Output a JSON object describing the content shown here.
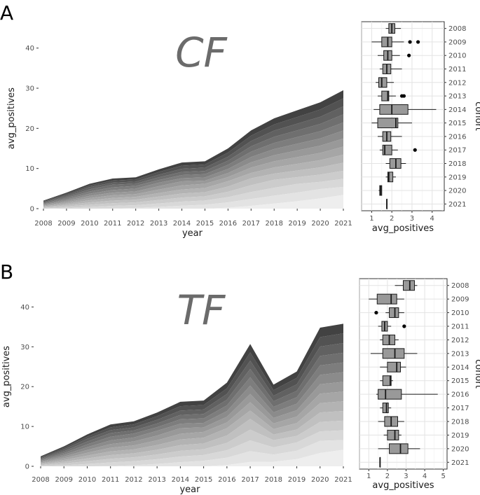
{
  "chart_data": [
    {
      "panel_label": "A",
      "watermark": "CF",
      "area": {
        "type": "area",
        "x": [
          "2008",
          "2009",
          "2010",
          "2011",
          "2012",
          "2013",
          "2014",
          "2015",
          "2016",
          "2017",
          "2018",
          "2019",
          "2020",
          "2021"
        ],
        "totals": [
          2,
          4,
          6.2,
          7.5,
          7.8,
          9.8,
          11.5,
          11.8,
          15,
          19.5,
          22.5,
          24.5,
          26.5,
          29.5
        ],
        "xlabel": "year",
        "ylabel": "avg_positives",
        "ylim": [
          0,
          45
        ],
        "yticks": [
          0,
          10,
          20,
          30,
          40
        ],
        "stack_colors": [
          "#424242",
          "#525252",
          "#616161",
          "#6f6f6f",
          "#7d7d7d",
          "#8b8b8b",
          "#999999",
          "#a6a6a6",
          "#b3b3b3",
          "#c0c0c0",
          "#cccccc",
          "#d8d8d8",
          "#e3e3e3",
          "#eeeeee"
        ]
      },
      "boxplot": {
        "type": "boxplot",
        "xlabel": "avg_positives",
        "ylabel": "cohort",
        "xlim": [
          0.5,
          4.6
        ],
        "xticks": [
          1,
          2,
          3,
          4
        ],
        "categories": [
          "2008",
          "2009",
          "2010",
          "2011",
          "2012",
          "2013",
          "2014",
          "2015",
          "2016",
          "2017",
          "2018",
          "2019",
          "2020",
          "2021"
        ],
        "boxes": [
          {
            "min": 1.7,
            "q1": 1.85,
            "median": 2.0,
            "q3": 2.15,
            "max": 2.45,
            "outliers": []
          },
          {
            "min": 1.0,
            "q1": 1.5,
            "median": 1.8,
            "q3": 2.0,
            "max": 2.6,
            "outliers": [
              2.9,
              3.3
            ]
          },
          {
            "min": 1.3,
            "q1": 1.6,
            "median": 1.8,
            "q3": 2.0,
            "max": 2.4,
            "outliers": [
              2.85
            ]
          },
          {
            "min": 1.4,
            "q1": 1.55,
            "median": 1.75,
            "q3": 1.95,
            "max": 2.5,
            "outliers": []
          },
          {
            "min": 1.2,
            "q1": 1.35,
            "median": 1.5,
            "q3": 1.75,
            "max": 2.1,
            "outliers": []
          },
          {
            "min": 1.3,
            "q1": 1.5,
            "median": 1.8,
            "q3": 1.85,
            "max": 2.2,
            "outliers": [
              2.5,
              2.6
            ]
          },
          {
            "min": 1.1,
            "q1": 1.4,
            "median": 2.0,
            "q3": 2.8,
            "max": 4.2,
            "outliers": []
          },
          {
            "min": 1.0,
            "q1": 1.3,
            "median": 2.2,
            "q3": 2.3,
            "max": 3.0,
            "outliers": []
          },
          {
            "min": 1.3,
            "q1": 1.55,
            "median": 1.75,
            "q3": 1.95,
            "max": 2.5,
            "outliers": []
          },
          {
            "min": 1.4,
            "q1": 1.55,
            "median": 1.65,
            "q3": 2.0,
            "max": 2.3,
            "outliers": [
              3.15
            ]
          },
          {
            "min": 1.7,
            "q1": 1.9,
            "median": 2.2,
            "q3": 2.45,
            "max": 2.7,
            "outliers": []
          },
          {
            "min": 1.7,
            "q1": 1.8,
            "median": 1.85,
            "q3": 2.05,
            "max": 2.2,
            "outliers": []
          },
          {
            "min": 1.35,
            "q1": 1.4,
            "median": 1.45,
            "q3": 1.5,
            "max": 1.5,
            "outliers": []
          },
          {
            "min": 1.75,
            "q1": 1.75,
            "median": 1.75,
            "q3": 1.75,
            "max": 1.75,
            "outliers": []
          }
        ]
      }
    },
    {
      "panel_label": "B",
      "watermark": "TF",
      "area": {
        "type": "area",
        "x": [
          "2008",
          "2009",
          "2010",
          "2011",
          "2012",
          "2013",
          "2014",
          "2015",
          "2016",
          "2017",
          "2018",
          "2019",
          "2020",
          "2021"
        ],
        "totals": [
          2.5,
          5,
          8,
          10.5,
          11.3,
          13.5,
          16.2,
          16.5,
          21,
          30.7,
          20.5,
          23.8,
          34.8,
          35.8
        ],
        "xlabel": "year",
        "ylabel": "avg_positives",
        "ylim": [
          0,
          45
        ],
        "yticks": [
          0,
          10,
          20,
          30,
          40
        ],
        "stack_colors": [
          "#424242",
          "#525252",
          "#616161",
          "#6f6f6f",
          "#7d7d7d",
          "#8b8b8b",
          "#999999",
          "#a6a6a6",
          "#b3b3b3",
          "#c0c0c0",
          "#cccccc",
          "#d8d8d8",
          "#e3e3e3",
          "#eeeeee"
        ]
      },
      "boxplot": {
        "type": "boxplot",
        "xlabel": "avg_positives",
        "ylabel": "cohort",
        "xlim": [
          0.5,
          5.2
        ],
        "xticks": [
          1,
          2,
          3,
          4,
          5
        ],
        "categories": [
          "2008",
          "2009",
          "2010",
          "2011",
          "2012",
          "2013",
          "2014",
          "2015",
          "2016",
          "2017",
          "2018",
          "2019",
          "2020",
          "2021"
        ],
        "boxes": [
          {
            "min": 2.4,
            "q1": 2.85,
            "median": 3.2,
            "q3": 3.45,
            "max": 3.6,
            "outliers": []
          },
          {
            "min": 1.0,
            "q1": 1.45,
            "median": 2.2,
            "q3": 2.5,
            "max": 2.9,
            "outliers": []
          },
          {
            "min": 1.9,
            "q1": 2.1,
            "median": 2.4,
            "q3": 2.6,
            "max": 2.9,
            "outliers": [
              1.4
            ]
          },
          {
            "min": 1.5,
            "q1": 1.7,
            "median": 1.85,
            "q3": 2.0,
            "max": 2.2,
            "outliers": [
              2.9
            ]
          },
          {
            "min": 1.6,
            "q1": 1.75,
            "median": 2.1,
            "q3": 2.4,
            "max": 2.6,
            "outliers": []
          },
          {
            "min": 1.1,
            "q1": 1.75,
            "median": 2.4,
            "q3": 2.9,
            "max": 3.6,
            "outliers": []
          },
          {
            "min": 1.6,
            "q1": 2.0,
            "median": 2.5,
            "q3": 2.7,
            "max": 3.0,
            "outliers": []
          },
          {
            "min": 1.6,
            "q1": 1.75,
            "median": 2.15,
            "q3": 2.2,
            "max": 2.3,
            "outliers": []
          },
          {
            "min": 1.4,
            "q1": 1.5,
            "median": 1.9,
            "q3": 2.75,
            "max": 4.7,
            "outliers": []
          },
          {
            "min": 1.6,
            "q1": 1.75,
            "median": 1.95,
            "q3": 2.05,
            "max": 2.2,
            "outliers": []
          },
          {
            "min": 1.5,
            "q1": 1.85,
            "median": 2.2,
            "q3": 2.55,
            "max": 2.9,
            "outliers": []
          },
          {
            "min": 1.8,
            "q1": 2.0,
            "median": 2.4,
            "q3": 2.6,
            "max": 2.75,
            "outliers": []
          },
          {
            "min": 1.5,
            "q1": 2.1,
            "median": 2.7,
            "q3": 3.1,
            "max": 3.75,
            "outliers": []
          },
          {
            "min": 1.6,
            "q1": 1.6,
            "median": 1.6,
            "q3": 1.6,
            "max": 1.6,
            "outliers": []
          }
        ]
      }
    }
  ]
}
